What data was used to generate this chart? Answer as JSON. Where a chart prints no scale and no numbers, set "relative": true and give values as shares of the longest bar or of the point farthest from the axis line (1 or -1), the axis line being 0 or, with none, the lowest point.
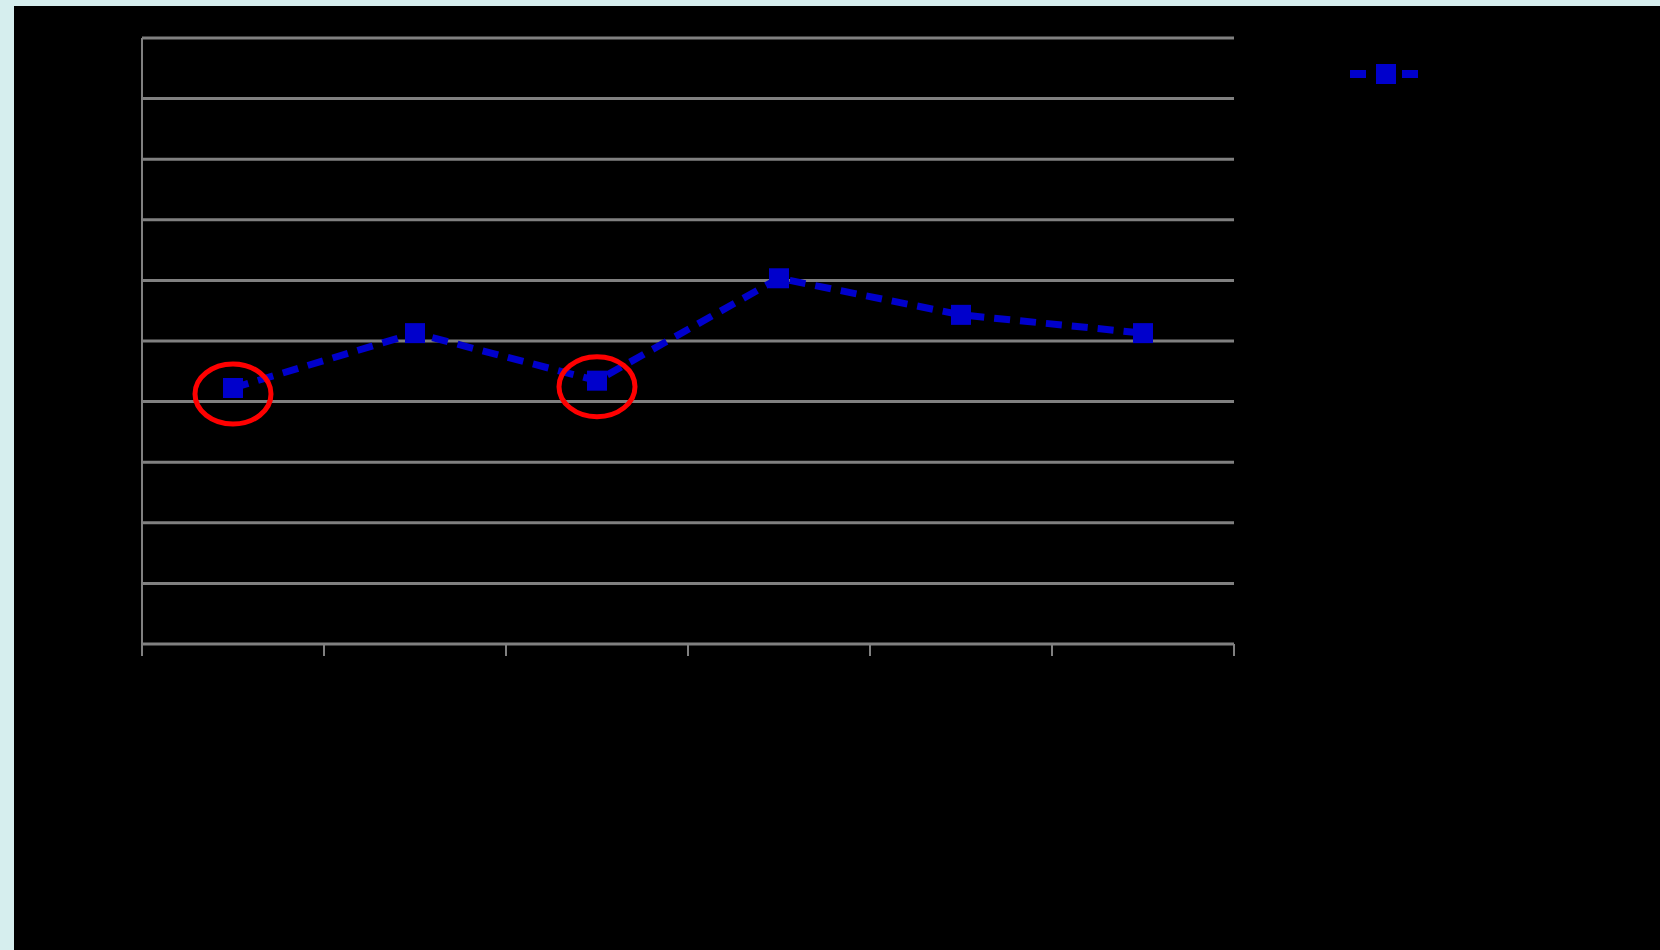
{
  "chart_data": {
    "type": "line",
    "relative": true,
    "categories": [
      null,
      null,
      null,
      null,
      null,
      null
    ],
    "series": [
      {
        "color": "#0000cc",
        "values": [
          0.7,
          0.85,
          0.72,
          1,
          0.9,
          0.85
        ]
      }
    ],
    "grid": "y",
    "marker": "square",
    "line_style": "dashed"
  }
}
